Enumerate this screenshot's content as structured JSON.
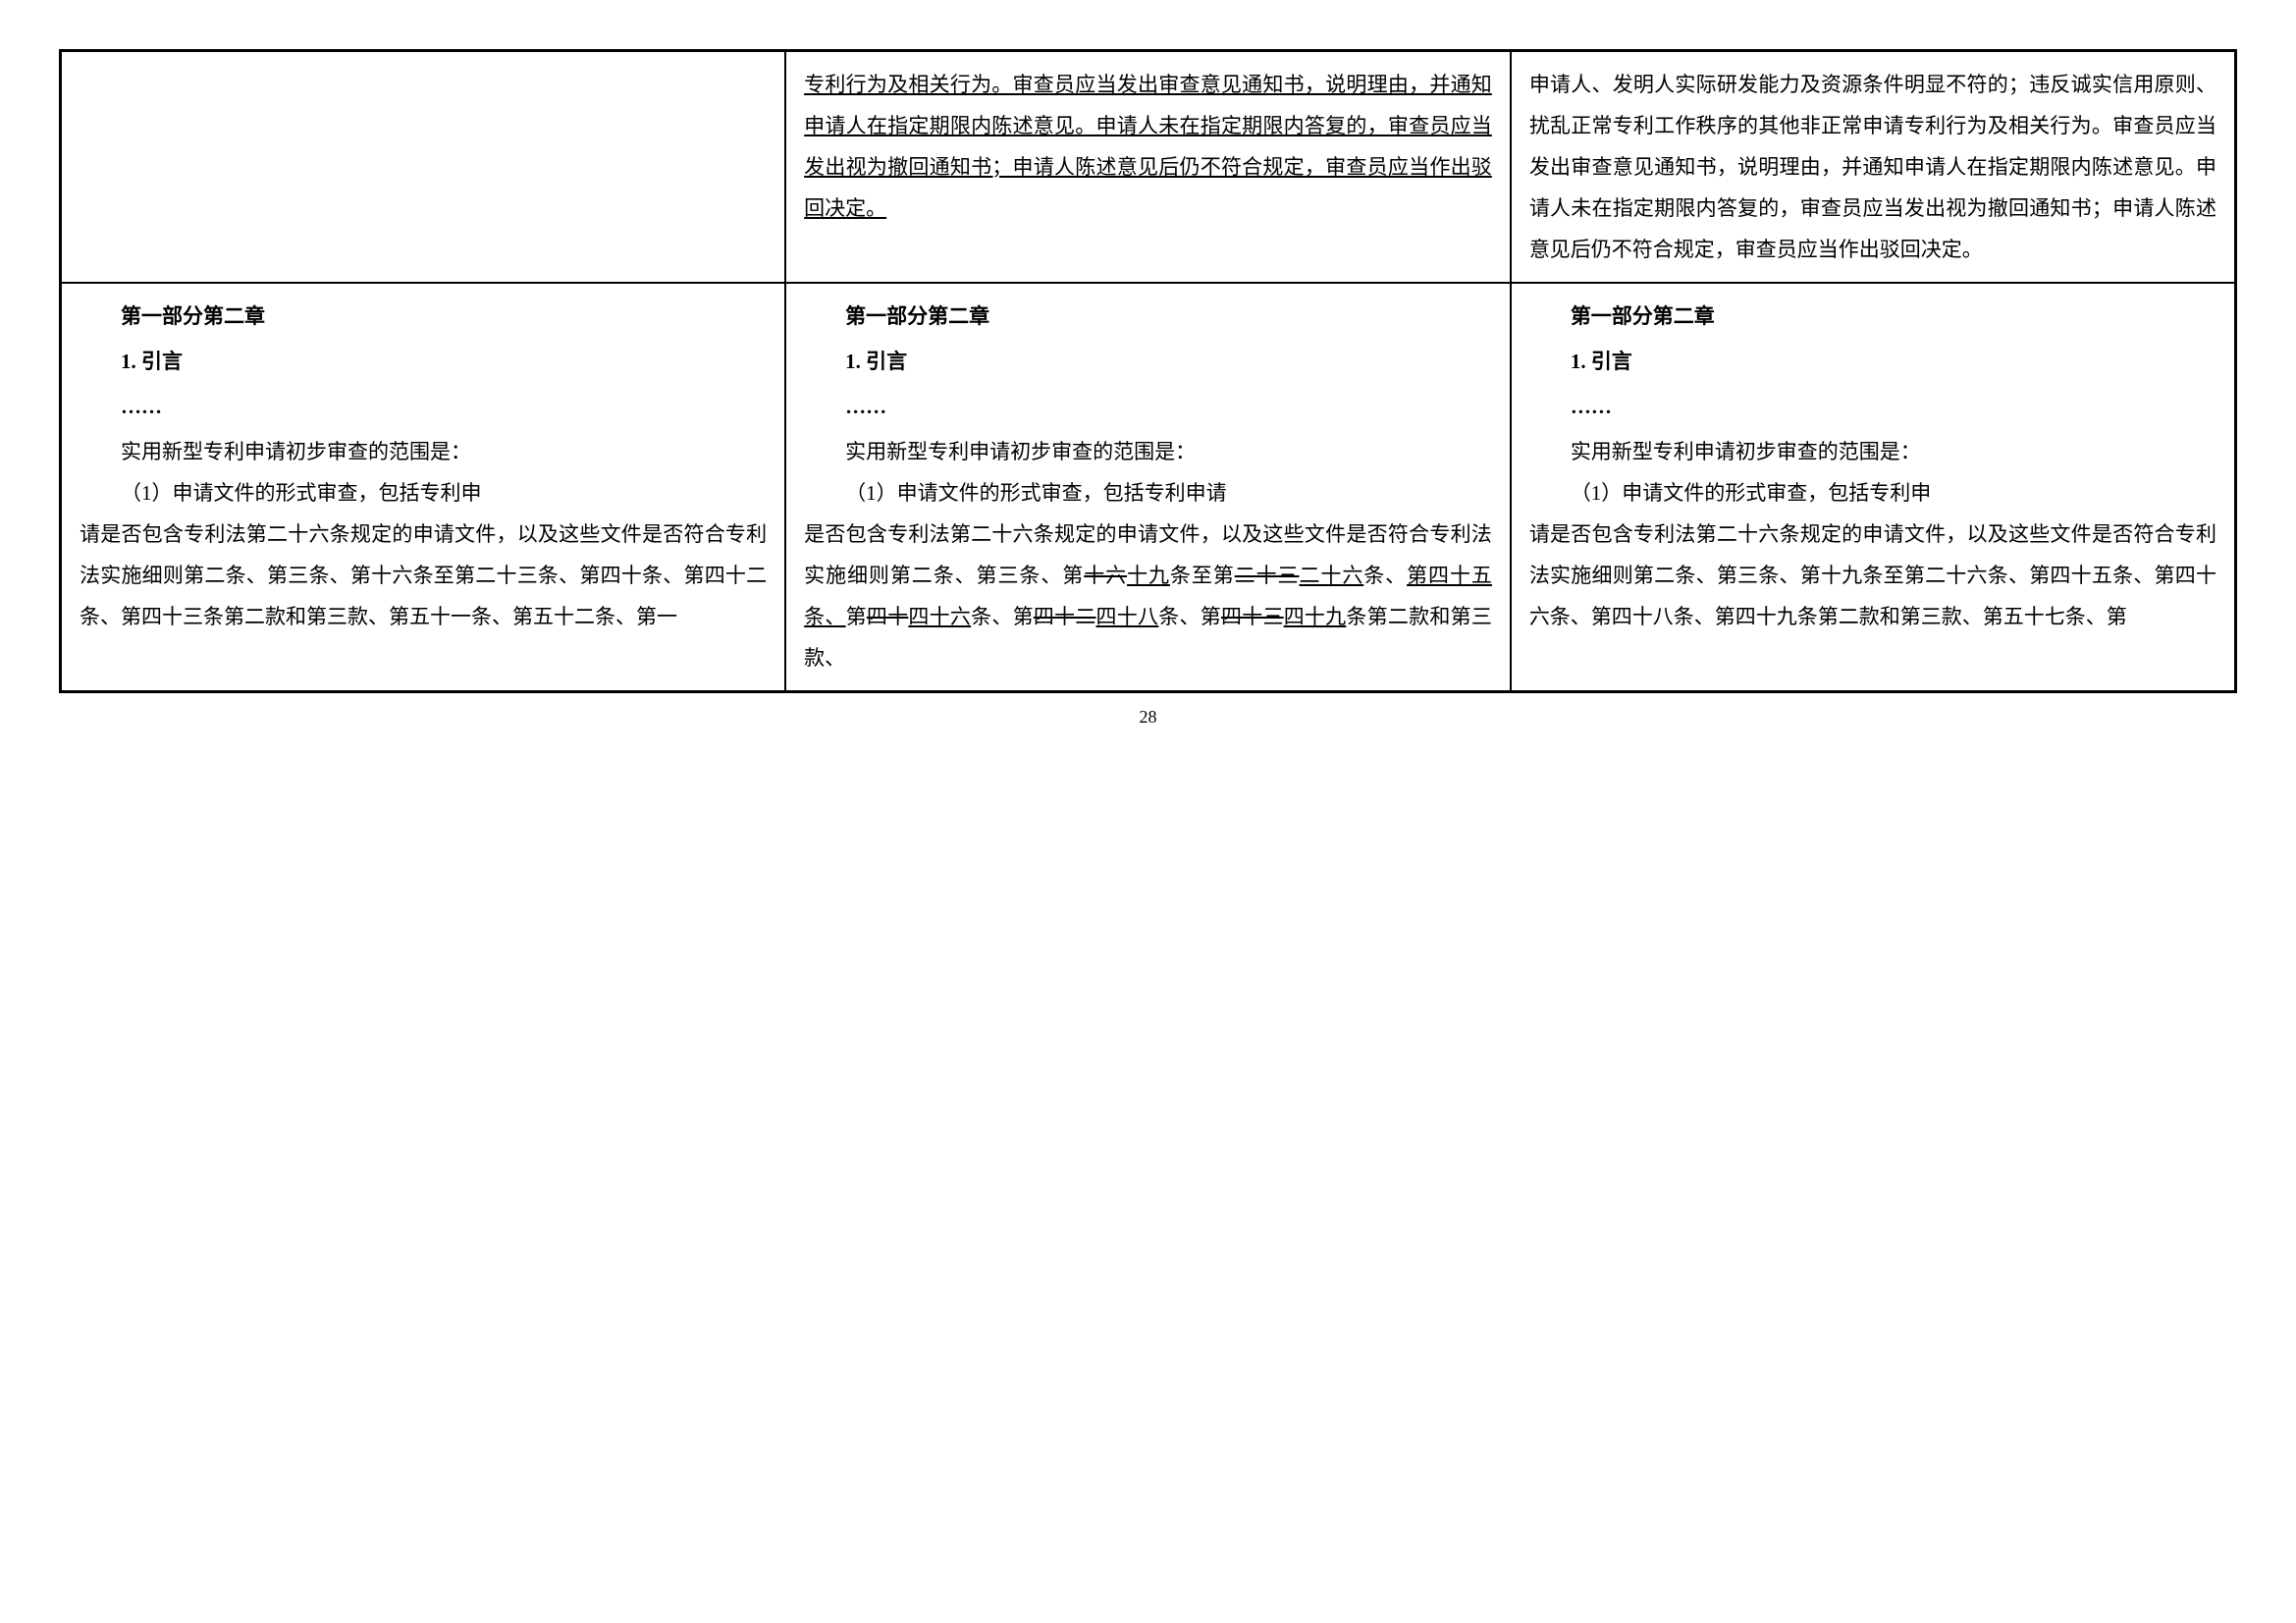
{
  "row1": {
    "col1": "",
    "col2": {
      "text": "专利行为及相关行为。审查员应当发出审查意见通知书，说明理由，并通知申请人在指定期限内陈述意见。申请人未在指定期限内答复的，审查员应当发出视为撤回通知书；申请人陈述意见后仍不符合规定，审查员应当作出驳回决定。"
    },
    "col3": {
      "text": "申请人、发明人实际研发能力及资源条件明显不符的；违反诚实信用原则、扰乱正常专利工作秩序的其他非正常申请专利行为及相关行为。审查员应当发出审查意见通知书，说明理由，并通知申请人在指定期限内陈述意见。申请人未在指定期限内答复的，审查员应当发出视为撤回通知书；申请人陈述意见后仍不符合规定，审查员应当作出驳回决定。"
    }
  },
  "row2": {
    "section_title": "第一部分第二章",
    "sub_title": "1.  引言",
    "ellipsis": "……",
    "intro": "实用新型专利申请初步审查的范围是：",
    "col1": {
      "p1_prefix": "（1）申请文件的形式审查，包括专利申",
      "p1_cont": "请是否包含专利法第二十六条规定的申请文件，以及这些文件是否符合专利法实施细则第二条、第三条、第十六条至第二十三条、第四十条、第四十二条、第四十三条第二款和第三款、第五十一条、第五十二条、第一"
    },
    "col2": {
      "p1_prefix": "（1）申请文件的形式审查，包括专利申请",
      "p1_cont": "是否包含专利法第二十六条规定的申请文件，以及这些文件是否符合专利法实施细则第二条、第三条、第",
      "seg1_strike": "十六",
      "seg1_under": "十九",
      "seg2": "条至第",
      "seg2_strike": "二十三",
      "seg2_under": "二十六",
      "seg3": "条、",
      "seg3_under": "第四十五条、",
      "seg4": "第",
      "seg4_strike": "四十",
      "seg4_under": "四十六",
      "seg5": "条、第",
      "seg5_strike": "四十二",
      "seg5_under": "四十八",
      "seg6": "条、第",
      "seg6_strike": "四十三",
      "seg6_under": "四十九",
      "seg7": "条第二款和第三款、"
    },
    "col3": {
      "p1_prefix": "（1）申请文件的形式审查，包括专利申",
      "p1_cont": "请是否包含专利法第二十六条规定的申请文件，以及这些文件是否符合专利法实施细则第二条、第三条、第十九条至第二十六条、第四十五条、第四十六条、第四十八条、第四十九条第二款和第三款、第五十七条、第"
    }
  },
  "page_number": "28"
}
